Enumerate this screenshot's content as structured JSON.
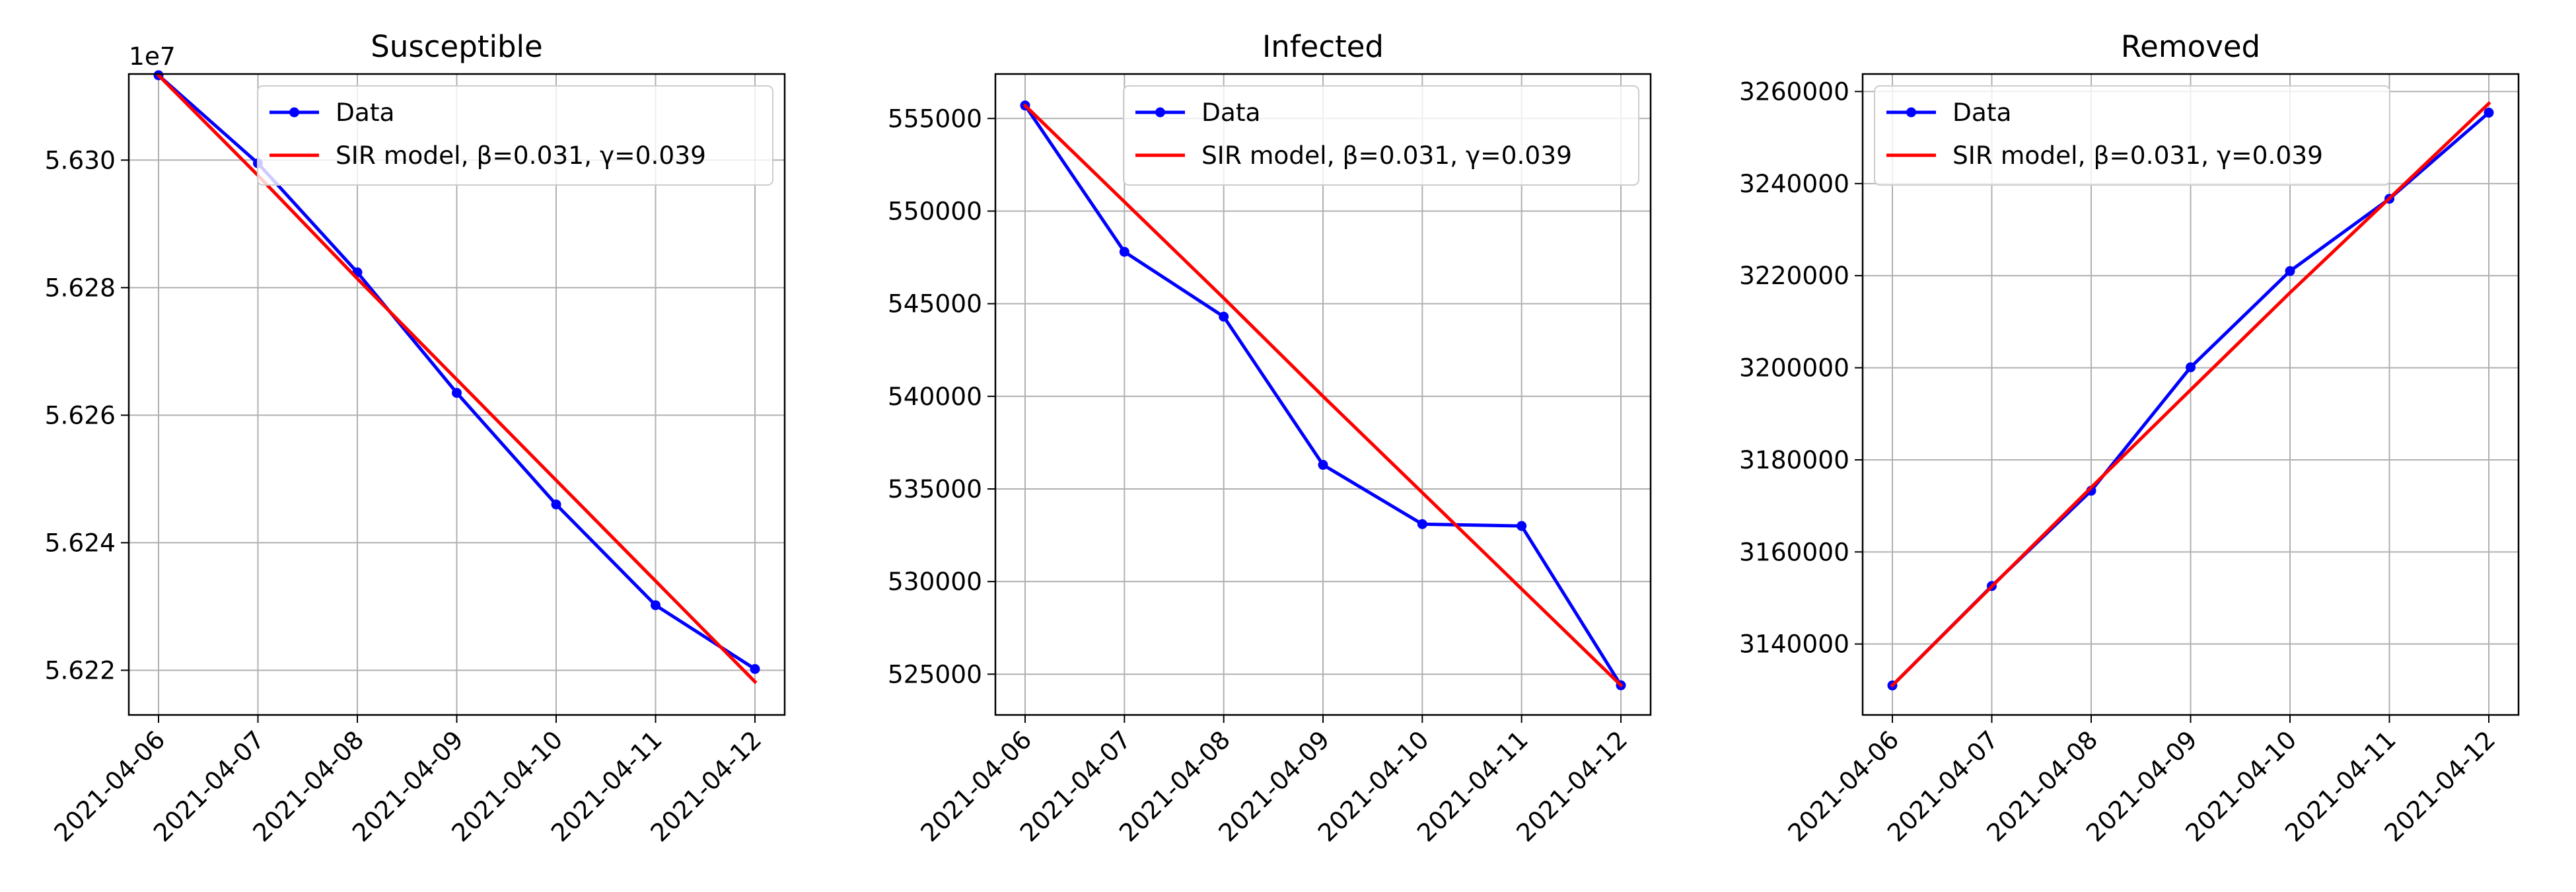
{
  "chart_data": [
    {
      "type": "line",
      "title": "Susceptible",
      "x": [
        "2021-04-06",
        "2021-04-07",
        "2021-04-08",
        "2021-04-09",
        "2021-04-10",
        "2021-04-11",
        "2021-04-12"
      ],
      "xlabel": "",
      "ylabel": "",
      "ylim": [
        56213000,
        56313500
      ],
      "yticks": [
        56220000,
        56240000,
        56260000,
        56280000,
        56300000
      ],
      "ytick_labels": [
        "5.622",
        "5.624",
        "5.626",
        "5.628",
        "5.630"
      ],
      "y_offset_label": "1e7",
      "grid": true,
      "legend_position": "upper right",
      "series": [
        {
          "name": "Data",
          "color": "#0000ff",
          "marker": "circle",
          "values": [
            56313300,
            56299500,
            56282400,
            56263500,
            56246000,
            56230200,
            56220200
          ]
        },
        {
          "name": "SIR model, β=0.031, γ=0.039",
          "color": "#ff0000",
          "marker": "none",
          "values": [
            56313300,
            56297600,
            56281400,
            56265600,
            56249800,
            56234000,
            56218200
          ]
        }
      ]
    },
    {
      "type": "line",
      "title": "Infected",
      "x": [
        "2021-04-06",
        "2021-04-07",
        "2021-04-08",
        "2021-04-09",
        "2021-04-10",
        "2021-04-11",
        "2021-04-12"
      ],
      "xlabel": "",
      "ylabel": "",
      "ylim": [
        522800,
        557400
      ],
      "yticks": [
        525000,
        530000,
        535000,
        540000,
        545000,
        550000,
        555000
      ],
      "ytick_labels": [
        "525000",
        "530000",
        "535000",
        "540000",
        "545000",
        "550000",
        "555000"
      ],
      "grid": true,
      "legend_position": "upper right",
      "series": [
        {
          "name": "Data",
          "color": "#0000ff",
          "marker": "circle",
          "values": [
            555700,
            547800,
            544300,
            536300,
            533100,
            533000,
            524400
          ]
        },
        {
          "name": "SIR model, β=0.031, γ=0.039",
          "color": "#ff0000",
          "marker": "none",
          "values": [
            555700,
            550500,
            545300,
            540000,
            534800,
            529600,
            524400
          ]
        }
      ]
    },
    {
      "type": "line",
      "title": "Removed",
      "x": [
        "2021-04-06",
        "2021-04-07",
        "2021-04-08",
        "2021-04-09",
        "2021-04-10",
        "2021-04-11",
        "2021-04-12"
      ],
      "xlabel": "",
      "ylabel": "",
      "ylim": [
        3124600,
        3263800
      ],
      "yticks": [
        3140000,
        3160000,
        3180000,
        3200000,
        3220000,
        3240000,
        3260000
      ],
      "ytick_labels": [
        "3140000",
        "3160000",
        "3180000",
        "3200000",
        "3220000",
        "3240000",
        "3260000"
      ],
      "grid": true,
      "legend_position": "upper left",
      "series": [
        {
          "name": "Data",
          "color": "#0000ff",
          "marker": "circle",
          "values": [
            3131000,
            3152600,
            3173300,
            3200100,
            3221000,
            3236700,
            3255400
          ]
        },
        {
          "name": "SIR model, β=0.031, γ=0.039",
          "color": "#ff0000",
          "marker": "none",
          "values": [
            3131000,
            3152500,
            3174000,
            3195200,
            3216300,
            3236800,
            3257400
          ]
        }
      ]
    }
  ]
}
